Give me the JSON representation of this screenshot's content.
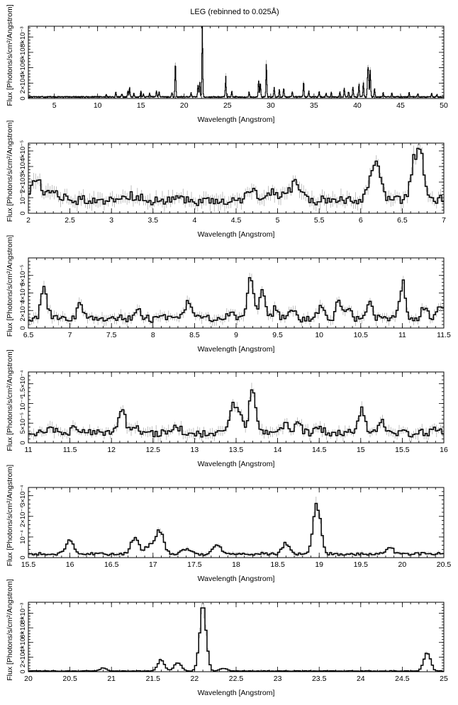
{
  "figure": {
    "title": "LEG (rebinned to 0.025Å)"
  },
  "chart_data": [
    {
      "type": "line",
      "xlabel": "Wavelength [Angstrom]",
      "ylabel": "Flux [Photons/s/cm²/Angstrom]",
      "xlim": [
        2,
        50
      ],
      "ylim": [
        0,
        0.0094
      ],
      "x_ticks": [
        5,
        10,
        15,
        20,
        25,
        30,
        35,
        40,
        45,
        50
      ],
      "x_tick_labels": [
        "5",
        "10",
        "15",
        "20",
        "25",
        "30",
        "35",
        "40",
        "45",
        "50"
      ],
      "y_ticks": [
        0,
        0.002,
        0.004,
        0.006,
        0.008
      ],
      "y_tick_labels": [
        "0",
        "2×10⁻³",
        "4×10⁻³",
        "6×10⁻³",
        "8×10⁻³"
      ],
      "baseline": 0.0002,
      "lines": [
        [
          11.0,
          0.0004
        ],
        [
          12.1,
          0.0006
        ],
        [
          12.8,
          0.0004
        ],
        [
          13.5,
          0.0008
        ],
        [
          13.7,
          0.0012
        ],
        [
          14.2,
          0.0005
        ],
        [
          15.0,
          0.0007
        ],
        [
          15.3,
          0.0004
        ],
        [
          16.0,
          0.0005
        ],
        [
          16.8,
          0.0007
        ],
        [
          17.1,
          0.0007
        ],
        [
          18.6,
          0.0006
        ],
        [
          18.97,
          0.0022
        ],
        [
          19.0,
          0.0026
        ],
        [
          20.8,
          0.0005
        ],
        [
          21.6,
          0.0015
        ],
        [
          21.8,
          0.0018
        ],
        [
          22.1,
          0.0086
        ],
        [
          24.8,
          0.0025
        ],
        [
          25.5,
          0.0007
        ],
        [
          27.5,
          0.0006
        ],
        [
          28.6,
          0.0022
        ],
        [
          28.8,
          0.0018
        ],
        [
          29.5,
          0.0042
        ],
        [
          30.4,
          0.0012
        ],
        [
          31.0,
          0.0009
        ],
        [
          31.5,
          0.0011
        ],
        [
          32.5,
          0.0006
        ],
        [
          33.8,
          0.0018
        ],
        [
          34.4,
          0.0007
        ],
        [
          35.6,
          0.0006
        ],
        [
          36.4,
          0.0005
        ],
        [
          37.0,
          0.0006
        ],
        [
          38.0,
          0.0006
        ],
        [
          38.5,
          0.0012
        ],
        [
          39.0,
          0.0007
        ],
        [
          39.5,
          0.0013
        ],
        [
          40.2,
          0.0016
        ],
        [
          40.7,
          0.0018
        ],
        [
          41.2,
          0.0027
        ],
        [
          41.5,
          0.0036
        ],
        [
          41.3,
          0.003
        ],
        [
          42.0,
          0.0011
        ],
        [
          43.0,
          0.0005
        ],
        [
          44.0,
          0.0005
        ],
        [
          46.0,
          0.0006
        ],
        [
          47.0,
          0.0004
        ],
        [
          48.6,
          0.0005
        ],
        [
          49.2,
          0.0003
        ]
      ],
      "width": 0.05
    },
    {
      "type": "line",
      "xlabel": "Wavelength [Angstrom]",
      "ylabel": "Flux [Photons/s/cm²/Angstrom]",
      "xlim": [
        2,
        7
      ],
      "ylim": [
        0,
        4.5e-05
      ],
      "x_ticks": [
        2,
        2.5,
        3,
        3.5,
        4,
        4.5,
        5,
        5.5,
        6,
        6.5,
        7
      ],
      "x_tick_labels": [
        "2",
        "2.5",
        "3",
        "3.5",
        "4",
        "4.5",
        "5",
        "5.5",
        "6",
        "6.5",
        "7"
      ],
      "y_ticks": [
        0,
        1e-05,
        2e-05,
        3e-05,
        4e-05
      ],
      "y_tick_labels": [
        "0",
        "10⁻⁵",
        "2×10⁻⁵",
        "3×10⁻⁵",
        "4×10⁻⁵"
      ],
      "baseline": 8.5e-06,
      "lines": [
        [
          2.1,
          1.3e-05
        ],
        [
          2.3,
          6e-06
        ],
        [
          3.2,
          4e-06
        ],
        [
          4.7,
          7e-06
        ],
        [
          4.95,
          5e-06
        ],
        [
          5.15,
          6e-06
        ],
        [
          5.25,
          8e-06
        ],
        [
          6.18,
          2.6e-05
        ],
        [
          6.69,
          3.5e-05
        ]
      ],
      "width": 0.06
    },
    {
      "type": "line",
      "xlabel": "Wavelength [Angstrom]",
      "ylabel": "Flux [Photons/s/cm²/Angstrom]",
      "xlim": [
        6.5,
        11.5
      ],
      "ylim": [
        0,
        8e-05
      ],
      "x_ticks": [
        6.5,
        7,
        7.5,
        8,
        8.5,
        9,
        9.5,
        10,
        10.5,
        11,
        11.5
      ],
      "x_tick_labels": [
        "6.5",
        "7",
        "7.5",
        "8",
        "8.5",
        "9",
        "9.5",
        "10",
        "10.5",
        "11",
        "11.5"
      ],
      "y_ticks": [
        0,
        2e-05,
        4e-05,
        6e-05
      ],
      "y_tick_labels": [
        "0",
        "2×10⁻⁵",
        "4×10⁻⁵",
        "6×10⁻⁵"
      ],
      "baseline": 1.1e-05,
      "lines": [
        [
          6.69,
          3.8e-05
        ],
        [
          7.12,
          1.8e-05
        ],
        [
          7.83,
          1e-05
        ],
        [
          8.42,
          2.2e-05
        ],
        [
          8.95,
          8e-06
        ],
        [
          9.17,
          5e-05
        ],
        [
          9.31,
          3e-05
        ],
        [
          9.48,
          1.2e-05
        ],
        [
          9.69,
          1e-05
        ],
        [
          10.02,
          1.4e-05
        ],
        [
          10.24,
          2.1e-05
        ],
        [
          10.36,
          1.2e-05
        ],
        [
          10.6,
          1.8e-05
        ],
        [
          11.0,
          4e-05
        ],
        [
          11.27,
          1.2e-05
        ],
        [
          11.45,
          1.6e-05
        ]
      ],
      "width": 0.035
    },
    {
      "type": "line",
      "xlabel": "Wavelength [Angstrom]",
      "ylabel": "Flux [Photons/s/cm²/Angstrom]",
      "xlim": [
        11,
        16
      ],
      "ylim": [
        0,
        0.00018
      ],
      "x_ticks": [
        11,
        11.5,
        12,
        12.5,
        13,
        13.5,
        14,
        14.5,
        15,
        15.5,
        16
      ],
      "x_tick_labels": [
        "11",
        "11.5",
        "12",
        "12.5",
        "13",
        "13.5",
        "14",
        "14.5",
        "15",
        "15.5",
        "16"
      ],
      "y_ticks": [
        0,
        5e-05,
        0.0001,
        0.00015
      ],
      "y_tick_labels": [
        "0",
        "5×10⁻⁵",
        "10⁻⁴",
        "1.5×10⁻⁴"
      ],
      "baseline": 2.5e-05,
      "lines": [
        [
          11.25,
          1e-05
        ],
        [
          11.55,
          1.2e-05
        ],
        [
          12.13,
          6e-05
        ],
        [
          12.3,
          2e-05
        ],
        [
          12.8,
          1.5e-05
        ],
        [
          13.46,
          7.5e-05
        ],
        [
          13.55,
          4e-05
        ],
        [
          13.7,
          0.00011
        ],
        [
          14.1,
          2.5e-05
        ],
        [
          14.25,
          3e-05
        ],
        [
          14.5,
          1.5e-05
        ],
        [
          15.01,
          6e-05
        ],
        [
          15.26,
          3e-05
        ],
        [
          15.5,
          1e-05
        ],
        [
          15.9,
          8e-06
        ]
      ],
      "width": 0.04
    },
    {
      "type": "line",
      "xlabel": "Wavelength [Angstrom]",
      "ylabel": "Flux [Photons/s/cm²/Angstrom]",
      "xlim": [
        15.5,
        20.5
      ],
      "ylim": [
        0,
        0.00034
      ],
      "x_ticks": [
        15.5,
        16,
        16.5,
        17,
        17.5,
        18,
        18.5,
        19,
        19.5,
        20,
        20.5
      ],
      "x_tick_labels": [
        "15.5",
        "16",
        "16.5",
        "17",
        "17.5",
        "18",
        "18.5",
        "19",
        "19.5",
        "20",
        "20.5"
      ],
      "y_ticks": [
        0,
        0.0001,
        0.0002,
        0.0003
      ],
      "y_tick_labels": [
        "0",
        "10⁻⁴",
        "2×10⁻⁴",
        "3×10⁻⁴"
      ],
      "baseline": 1.8e-05,
      "lines": [
        [
          16.0,
          6.5e-05
        ],
        [
          16.78,
          8.5e-05
        ],
        [
          16.95,
          4e-05
        ],
        [
          17.06,
          6.5e-05
        ],
        [
          17.1,
          6e-05
        ],
        [
          17.4,
          2.5e-05
        ],
        [
          17.77,
          4.5e-05
        ],
        [
          18.6,
          5e-05
        ],
        [
          18.97,
          0.00024
        ],
        [
          19.85,
          3e-05
        ]
      ],
      "width": 0.045
    },
    {
      "type": "line",
      "xlabel": "Wavelength [Angstrom]",
      "ylabel": "Flux [Photons/s/cm²/Angstrom]",
      "xlim": [
        20,
        25
      ],
      "ylim": [
        0,
        0.0095
      ],
      "x_ticks": [
        20,
        20.5,
        21,
        21.5,
        22,
        22.5,
        23,
        23.5,
        24,
        24.5,
        25
      ],
      "x_tick_labels": [
        "20",
        "20.5",
        "21",
        "21.5",
        "22",
        "22.5",
        "23",
        "23.5",
        "24",
        "24.5",
        "25"
      ],
      "y_ticks": [
        0,
        0.002,
        0.004,
        0.006,
        0.008
      ],
      "y_tick_labels": [
        "0",
        "2×10⁻³",
        "4×10⁻³",
        "6×10⁻³",
        "8×10⁻³"
      ],
      "baseline": 0.0001,
      "lines": [
        [
          20.9,
          0.0004
        ],
        [
          21.6,
          0.0015
        ],
        [
          21.8,
          0.0012
        ],
        [
          22.1,
          0.0085
        ],
        [
          22.35,
          0.0004
        ],
        [
          24.8,
          0.0024
        ]
      ],
      "width": 0.04
    }
  ]
}
